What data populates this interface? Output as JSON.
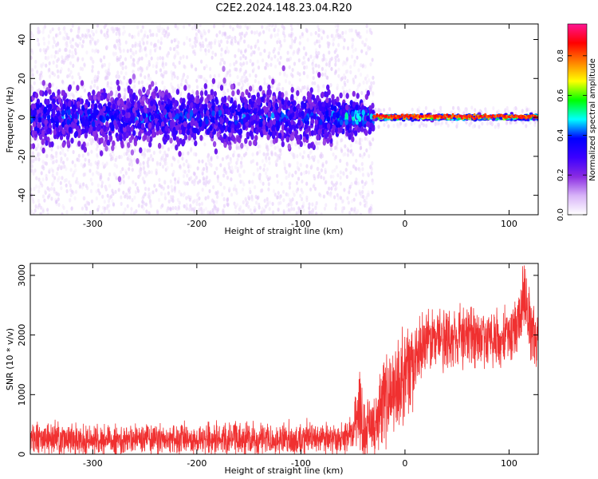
{
  "title": "C2E2.2024.148.23.04.R20",
  "chart_data": [
    {
      "type": "heatmap",
      "xlabel": "Height of straight line (km)",
      "ylabel": "Frequency (Hz)",
      "xlim": [
        -360,
        128
      ],
      "ylim": [
        -50,
        48
      ],
      "x_ticks": [
        -300,
        -200,
        -100,
        0,
        100
      ],
      "y_ticks": [
        -40,
        -20,
        0,
        20,
        40
      ],
      "colorbar": {
        "label": "Normalized spectral amplitude",
        "range": [
          0.0,
          0.96
        ],
        "ticks": [
          0.0,
          0.2,
          0.4,
          0.6,
          0.8
        ],
        "colormap": [
          "#ffffff",
          "#d8b4f8",
          "#8a2be2",
          "#3b00ff",
          "#0000ff",
          "#00ffff",
          "#00ff00",
          "#ffff00",
          "#ff8000",
          "#ff0000",
          "#ff1493"
        ]
      },
      "regions": [
        {
          "x_range": [
            -360,
            -70
          ],
          "freq_spread": [
            -50,
            48
          ],
          "core_band": [
            -12,
            12
          ],
          "peak_amplitude": 0.35
        },
        {
          "x_range": [
            -70,
            -30
          ],
          "freq_spread": [
            -50,
            48
          ],
          "core_band": [
            -8,
            8
          ],
          "peak_amplitude": 0.45
        },
        {
          "x_range": [
            -30,
            128
          ],
          "freq_spread": [
            -5,
            5
          ],
          "core_band": [
            -1,
            1
          ],
          "peak_amplitude": 0.9
        }
      ]
    },
    {
      "type": "line",
      "xlabel": "Height of straight line (km)",
      "ylabel": "SNR (10 * v/v)",
      "xlim": [
        -360,
        128
      ],
      "ylim": [
        0,
        3200
      ],
      "x_ticks": [
        -300,
        -200,
        -100,
        0,
        100
      ],
      "y_ticks": [
        0,
        1000,
        2000,
        3000
      ],
      "color": "#f03030",
      "series": [
        {
          "x": [
            -360,
            -340,
            -320,
            -300,
            -280,
            -260,
            -240,
            -220,
            -200,
            -180,
            -160,
            -140,
            -120,
            -100,
            -80,
            -60,
            -50,
            -45,
            -40,
            -35,
            -30,
            -20,
            -10,
            0,
            10,
            20,
            30,
            40,
            50,
            60,
            70,
            80,
            90,
            100,
            110,
            115,
            120,
            128
          ],
          "y": [
            250,
            250,
            240,
            250,
            240,
            250,
            250,
            250,
            250,
            250,
            260,
            250,
            250,
            260,
            260,
            250,
            320,
            900,
            450,
            420,
            400,
            900,
            1100,
            1300,
            1600,
            1900,
            1950,
            2000,
            1900,
            2000,
            1950,
            1900,
            1950,
            2000,
            2300,
            2700,
            2200,
            1800
          ],
          "spread": [
            250,
            250,
            250,
            250,
            250,
            250,
            250,
            250,
            250,
            250,
            250,
            250,
            250,
            250,
            250,
            250,
            300,
            700,
            500,
            500,
            500,
            700,
            700,
            700,
            700,
            500,
            500,
            500,
            500,
            500,
            500,
            500,
            500,
            500,
            500,
            600,
            600,
            600
          ]
        }
      ]
    }
  ]
}
